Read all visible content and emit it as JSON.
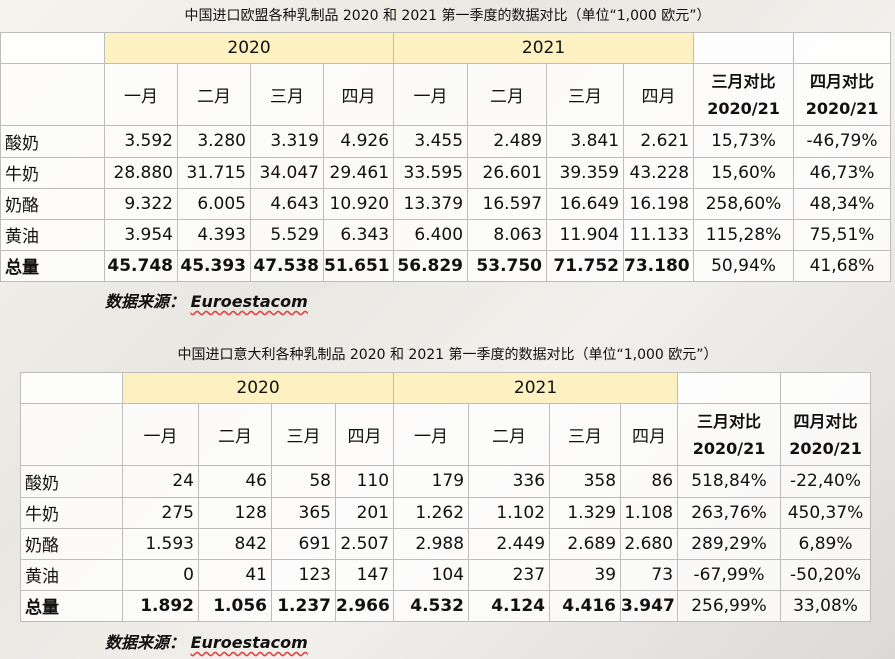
{
  "eu": {
    "title": "中国进口欧盟各种乳制品 2020 和 2021 第一季度的数据对比（单位“1,000 欧元”）",
    "year_2020": "2020",
    "year_2021": "2021",
    "months": [
      "一月",
      "二月",
      "三月",
      "四月"
    ],
    "cmp_march": [
      "三月对比",
      "2020/21"
    ],
    "cmp_april": [
      "四月对比",
      "2020/21"
    ],
    "rows": [
      {
        "label": "酸奶",
        "values": [
          "3.592",
          "3.280",
          "3.319",
          "4.926",
          "3.455",
          "2.489",
          "3.841",
          "2.621"
        ],
        "march": "15,73%",
        "april": "-46,79%"
      },
      {
        "label": "牛奶",
        "values": [
          "28.880",
          "31.715",
          "34.047",
          "29.461",
          "33.595",
          "26.601",
          "39.359",
          "43.228"
        ],
        "march": "15,60%",
        "april": "46,73%"
      },
      {
        "label": "奶酪",
        "values": [
          "9.322",
          "6.005",
          "4.643",
          "10.920",
          "13.379",
          "16.597",
          "16.649",
          "16.198"
        ],
        "march": "258,60%",
        "april": "48,34%"
      },
      {
        "label": "黄油",
        "values": [
          "3.954",
          "4.393",
          "5.529",
          "6.343",
          "6.400",
          "8.063",
          "11.904",
          "11.133"
        ],
        "march": "115,28%",
        "april": "75,51%"
      },
      {
        "label": "总量",
        "values": [
          "45.748",
          "45.393",
          "47.538",
          "51.651",
          "56.829",
          "53.750",
          "71.752",
          "73.180"
        ],
        "march": "50,94%",
        "april": "41,68%"
      }
    ],
    "source_label": "数据来源：",
    "source_name": "Euroestacom"
  },
  "it": {
    "title": "中国进口意大利各种乳制品 2020 和 2021 第一季度的数据对比（单位“1,000 欧元”）",
    "year_2020": "2020",
    "year_2021": "2021",
    "months": [
      "一月",
      "二月",
      "三月",
      "四月"
    ],
    "cmp_march": [
      "三月对比",
      "2020/21"
    ],
    "cmp_april": [
      "四月对比",
      "2020/21"
    ],
    "rows": [
      {
        "label": "酸奶",
        "values": [
          "24",
          "46",
          "58",
          "110",
          "179",
          "336",
          "358",
          "86"
        ],
        "march": "518,84%",
        "april": "-22,40%"
      },
      {
        "label": "牛奶",
        "values": [
          "275",
          "128",
          "365",
          "201",
          "1.262",
          "1.102",
          "1.329",
          "1.108"
        ],
        "march": "263,76%",
        "april": "450,37%"
      },
      {
        "label": "奶酪",
        "values": [
          "1.593",
          "842",
          "691",
          "2.507",
          "2.988",
          "2.449",
          "2.689",
          "2.680"
        ],
        "march": "289,29%",
        "april": "6,89%"
      },
      {
        "label": "黄油",
        "values": [
          "0",
          "41",
          "123",
          "147",
          "104",
          "237",
          "39",
          "73"
        ],
        "march": "-67,99%",
        "april": "-50,20%"
      },
      {
        "label": "总量",
        "values": [
          "1.892",
          "1.056",
          "1.237",
          "2.966",
          "4.532",
          "4.124",
          "4.416",
          "3.947"
        ],
        "march": "256,99%",
        "april": "33,08%"
      }
    ],
    "source_label": "数据来源：",
    "source_name": "Euroestacom"
  }
}
